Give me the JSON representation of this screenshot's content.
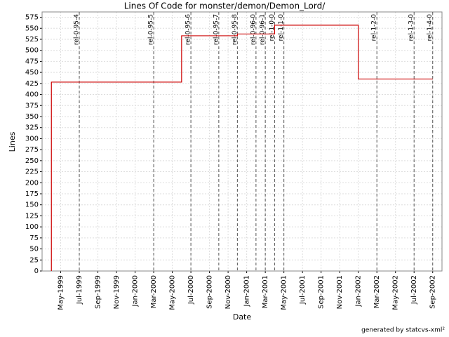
{
  "chart_data": {
    "type": "step",
    "title": "Lines Of Code for monster/demon/Demon_Lord/",
    "x_label": "Date",
    "y_label": "Lines",
    "footer": "generated by statcvs-xml²",
    "x": [
      "1999-04",
      "1999-04",
      "2000-06",
      "2000-12",
      "2001-04",
      "2002-01",
      "2002-09"
    ],
    "series": [
      {
        "name": "Lines",
        "color": "#cc0000",
        "values": [
          0,
          428,
          533,
          537,
          557,
          435,
          435
        ]
      }
    ],
    "xlim": [
      "1999-03",
      "2002-10"
    ],
    "xticks": [
      {
        "value": "1999-05",
        "label": "May-1999"
      },
      {
        "value": "1999-07",
        "label": "Jul-1999"
      },
      {
        "value": "1999-09",
        "label": "Sep-1999"
      },
      {
        "value": "1999-11",
        "label": "Nov-1999"
      },
      {
        "value": "2000-01",
        "label": "Jan-2000"
      },
      {
        "value": "2000-03",
        "label": "Mar-2000"
      },
      {
        "value": "2000-05",
        "label": "May-2000"
      },
      {
        "value": "2000-07",
        "label": "Jul-2000"
      },
      {
        "value": "2000-09",
        "label": "Sep-2000"
      },
      {
        "value": "2000-11",
        "label": "Nov-2000"
      },
      {
        "value": "2001-01",
        "label": "Jan-2001"
      },
      {
        "value": "2001-03",
        "label": "Mar-2001"
      },
      {
        "value": "2001-05",
        "label": "May-2001"
      },
      {
        "value": "2001-07",
        "label": "Jul-2001"
      },
      {
        "value": "2001-09",
        "label": "Sep-2001"
      },
      {
        "value": "2001-11",
        "label": "Nov-2001"
      },
      {
        "value": "2002-01",
        "label": "Jan-2002"
      },
      {
        "value": "2002-03",
        "label": "Mar-2002"
      },
      {
        "value": "2002-05",
        "label": "May-2002"
      },
      {
        "value": "2002-07",
        "label": "Jul-2002"
      },
      {
        "value": "2002-09",
        "label": "Sep-2002"
      }
    ],
    "ylim": [
      0,
      587
    ],
    "yticks": [
      0,
      25,
      50,
      75,
      100,
      125,
      150,
      175,
      200,
      225,
      250,
      275,
      300,
      325,
      350,
      375,
      400,
      425,
      450,
      475,
      500,
      525,
      550,
      575
    ],
    "grid": true,
    "markers": [
      {
        "x": "1999-07",
        "label": "rel-0-95-4"
      },
      {
        "x": "2000-03",
        "label": "rel-0-95-5"
      },
      {
        "x": "2000-07",
        "label": "rel-0-95-6"
      },
      {
        "x": "2000-10",
        "label": "rel-0-95-7"
      },
      {
        "x": "2000-12",
        "label": "rel-0-95-8"
      },
      {
        "x": "2001-02",
        "label": "rel-0-96-0"
      },
      {
        "x": "2001-03",
        "label": "rel-0-96-1"
      },
      {
        "x": "2001-04",
        "label": "rel-1-0-0"
      },
      {
        "x": "2001-05",
        "label": "rel-1-1-0"
      },
      {
        "x": "2002-03",
        "label": "rel-1-2-0"
      },
      {
        "x": "2002-07",
        "label": "rel-1-3-0"
      },
      {
        "x": "2002-09",
        "label": "rel-1-4-0"
      }
    ]
  }
}
